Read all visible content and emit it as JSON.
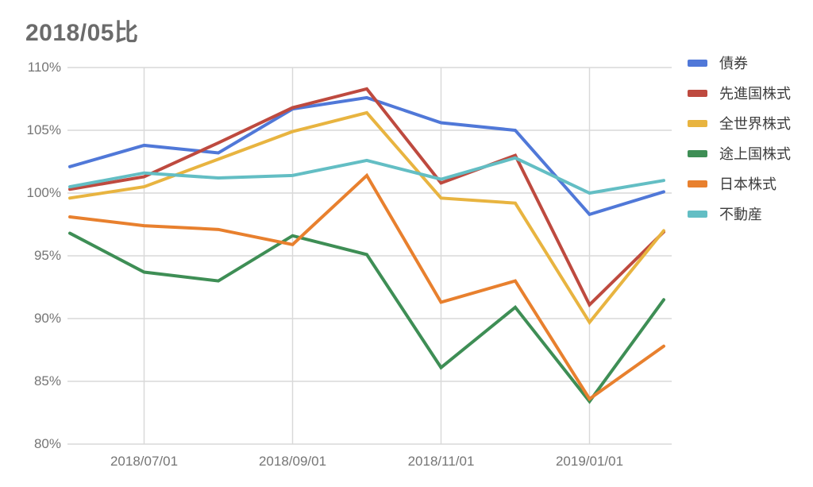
{
  "title": "2018/05比",
  "chart_data": {
    "type": "line",
    "x": [
      "2018/06/01",
      "2018/07/01",
      "2018/08/01",
      "2018/09/01",
      "2018/10/01",
      "2018/11/01",
      "2018/12/01",
      "2019/01/01",
      "2019/02/01"
    ],
    "x_tick_labels": [
      "2018/07/01",
      "2018/09/01",
      "2018/11/01",
      "2019/01/01"
    ],
    "x_tick_indices": [
      1,
      3,
      5,
      7
    ],
    "y_ticks": [
      "110%",
      "105%",
      "100%",
      "95%",
      "90%",
      "85%",
      "80%"
    ],
    "ylim": [
      80,
      110
    ],
    "grid": true,
    "legend_position": "right",
    "series": [
      {
        "name": "債券",
        "color": "#5078D8",
        "values": [
          102.1,
          103.8,
          103.2,
          106.7,
          107.6,
          105.6,
          105.0,
          98.3,
          100.1
        ]
      },
      {
        "name": "先進国株式",
        "color": "#BE4A3F",
        "values": [
          100.3,
          101.3,
          104.0,
          106.8,
          108.3,
          100.8,
          103.0,
          91.1,
          96.9
        ]
      },
      {
        "name": "全世界株式",
        "color": "#E8B440",
        "values": [
          99.6,
          100.5,
          102.7,
          104.9,
          106.4,
          99.6,
          99.2,
          89.7,
          97.0
        ]
      },
      {
        "name": "途上国株式",
        "color": "#3E8E55",
        "values": [
          96.8,
          93.7,
          93.0,
          96.6,
          95.1,
          86.1,
          90.9,
          83.4,
          91.5
        ]
      },
      {
        "name": "日本株式",
        "color": "#E8802E",
        "values": [
          98.1,
          97.4,
          97.1,
          95.9,
          101.4,
          91.3,
          93.0,
          83.6,
          87.8
        ]
      },
      {
        "name": "不動産",
        "color": "#63BEC4",
        "values": [
          100.5,
          101.6,
          101.2,
          101.4,
          102.6,
          101.1,
          102.8,
          100.0,
          101.0
        ]
      }
    ],
    "gridline_color": "#d9d9d9",
    "axis_label_color": "#757575"
  }
}
